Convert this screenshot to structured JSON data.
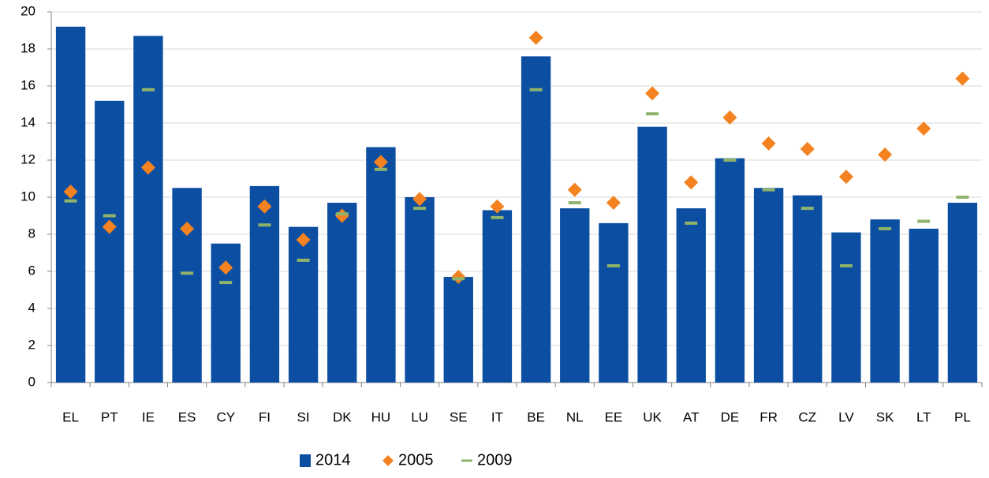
{
  "chart_data": {
    "type": "bar",
    "categories": [
      "EL",
      "PT",
      "IE",
      "ES",
      "CY",
      "FI",
      "SI",
      "DK",
      "HU",
      "LU",
      "SE",
      "IT",
      "BE",
      "NL",
      "EE",
      "UK",
      "AT",
      "DE",
      "FR",
      "CZ",
      "LV",
      "SK",
      "LT",
      "PL"
    ],
    "series": [
      {
        "name": "2014",
        "marker": "bar",
        "color": "#0b4ea2",
        "values": [
          19.2,
          15.2,
          18.7,
          10.5,
          7.5,
          10.6,
          8.4,
          9.7,
          12.7,
          10.0,
          5.7,
          9.3,
          17.6,
          9.4,
          8.6,
          13.8,
          9.4,
          12.1,
          10.5,
          10.1,
          8.1,
          8.8,
          8.3,
          9.7
        ]
      },
      {
        "name": "2005",
        "marker": "diamond",
        "color": "#f58220",
        "values": [
          10.3,
          8.4,
          11.6,
          8.3,
          6.2,
          9.5,
          7.7,
          9.0,
          11.9,
          9.9,
          5.7,
          9.5,
          18.6,
          10.4,
          9.7,
          15.6,
          10.8,
          14.3,
          12.9,
          12.6,
          11.1,
          12.3,
          13.7,
          16.4
        ]
      },
      {
        "name": "2009",
        "marker": "dash",
        "color": "#8fb36b",
        "values": [
          9.8,
          9.0,
          15.8,
          5.9,
          5.4,
          8.5,
          6.6,
          9.1,
          11.5,
          9.4,
          5.6,
          8.9,
          15.8,
          9.7,
          6.3,
          14.5,
          8.6,
          12.0,
          10.4,
          9.4,
          6.3,
          8.3,
          8.7,
          10.0
        ]
      }
    ],
    "ylim": [
      0,
      20
    ],
    "yticks": [
      0,
      2,
      4,
      6,
      8,
      10,
      12,
      14,
      16,
      18,
      20
    ],
    "grid": true
  }
}
